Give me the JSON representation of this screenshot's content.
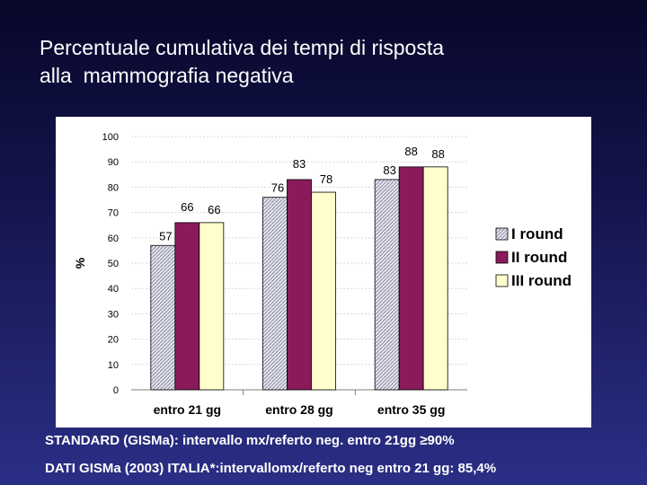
{
  "title": {
    "line1": "Percentuale cumulativa dei tempi di risposta",
    "line2": "alla  mammografia negativa"
  },
  "chart_data": {
    "type": "bar",
    "title": "",
    "xlabel": "",
    "ylabel": "%",
    "ylim": [
      0,
      100
    ],
    "yticks": [
      0,
      10,
      20,
      30,
      40,
      50,
      60,
      70,
      80,
      90,
      100
    ],
    "categories": [
      "entro 21 gg",
      "entro 28 gg",
      "entro 35 gg"
    ],
    "series": [
      {
        "name": "I round",
        "values": [
          57,
          76,
          83
        ],
        "color": "#d8d8e8",
        "pattern": "hatched"
      },
      {
        "name": "II round",
        "values": [
          66,
          83,
          88
        ],
        "color": "#8b1a5a"
      },
      {
        "name": "III round",
        "values": [
          66,
          78,
          88
        ],
        "color": "#ffffcc"
      }
    ],
    "legend_position": "right",
    "grid": true
  },
  "notes": {
    "standard": "STANDARD (GISMa): intervallo mx/referto neg. entro 21gg  ≥90%",
    "dati": "DATI GISMa (2003) ITALIA*:intervallomx/referto neg entro 21 gg: 85,4%"
  }
}
